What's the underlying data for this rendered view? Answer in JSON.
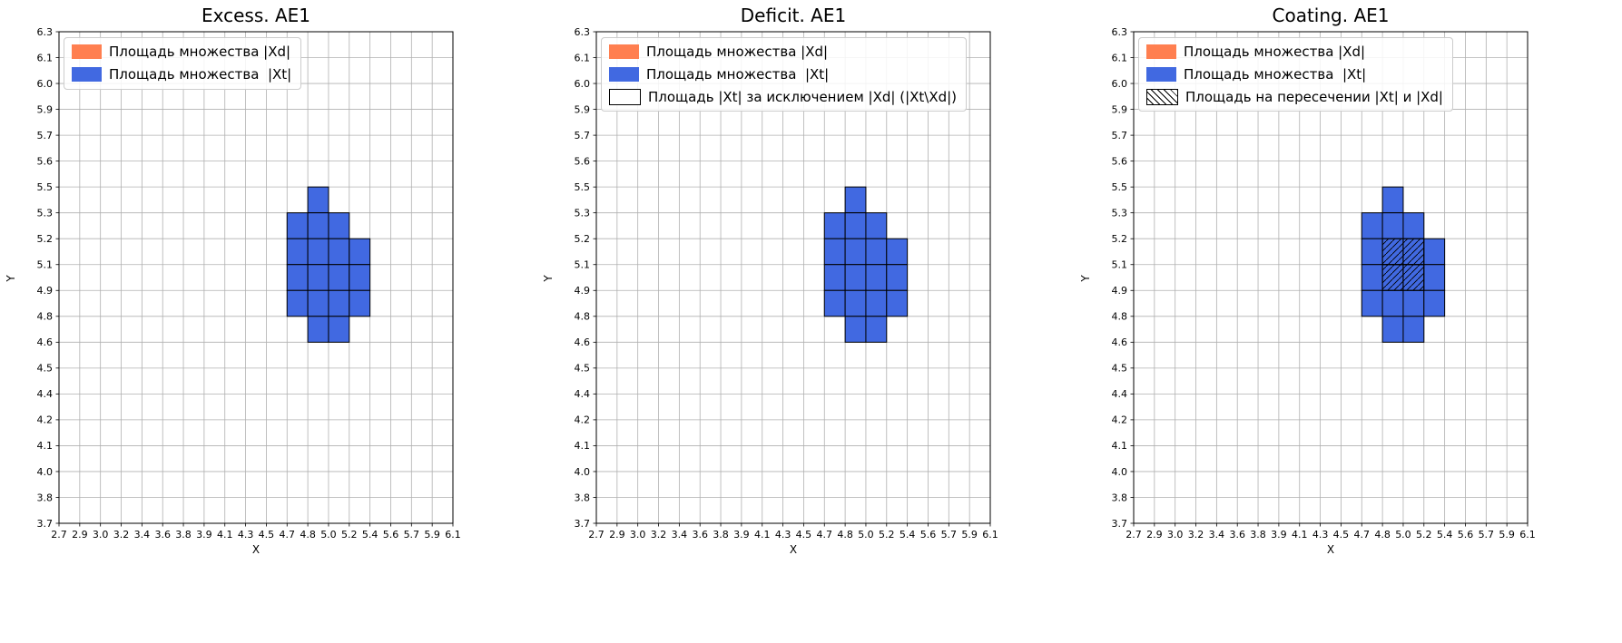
{
  "style": {
    "grid_color": "#b0b0b0",
    "spine_color": "#000000",
    "cell_edge_color": "#000000",
    "hatch_color": "#000000",
    "xd_color": "#ff7f50",
    "xt_color": "#4169e1"
  },
  "chart_data": [
    {
      "type": "area",
      "title": "Excess. AE1",
      "xlabel": "X",
      "ylabel": "Y",
      "grid": true,
      "legend_position": "upper left",
      "x_ticks": [
        "2.7",
        "2.9",
        "3.0",
        "3.2",
        "3.4",
        "3.6",
        "3.8",
        "3.9",
        "4.1",
        "4.3",
        "4.5",
        "4.7",
        "4.8",
        "5.0",
        "5.2",
        "5.4",
        "5.6",
        "5.7",
        "5.9",
        "6.1"
      ],
      "y_ticks": [
        "3.7",
        "3.8",
        "4.0",
        "4.1",
        "4.2",
        "4.4",
        "4.5",
        "4.6",
        "4.8",
        "4.9",
        "5.1",
        "5.2",
        "5.3",
        "5.5",
        "5.6",
        "5.7",
        "5.9",
        "6.0",
        "6.1",
        "6.3"
      ],
      "legend": [
        {
          "label": "Площадь множества |Xd|",
          "style": "solid",
          "color": "#ff7f50"
        },
        {
          "label": "Площадь множества  |Xt|",
          "style": "solid",
          "color": "#4169e1"
        }
      ],
      "xt_region": {
        "fill": "#4169e1",
        "x_range": [
          4.7,
          5.4
        ],
        "y_range": [
          4.6,
          5.5
        ],
        "cells": [
          [
            12,
            12
          ],
          [
            11,
            11
          ],
          [
            12,
            11
          ],
          [
            13,
            11
          ],
          [
            11,
            10
          ],
          [
            12,
            10
          ],
          [
            13,
            10
          ],
          [
            14,
            10
          ],
          [
            11,
            9
          ],
          [
            12,
            9
          ],
          [
            13,
            9
          ],
          [
            14,
            9
          ],
          [
            11,
            8
          ],
          [
            12,
            8
          ],
          [
            13,
            8
          ],
          [
            14,
            8
          ],
          [
            12,
            7
          ],
          [
            13,
            7
          ]
        ]
      },
      "hatched_cells": []
    },
    {
      "type": "area",
      "title": "Deficit. AE1",
      "xlabel": "X",
      "ylabel": "Y",
      "grid": true,
      "legend_position": "upper left",
      "x_ticks": [
        "2.7",
        "2.9",
        "3.0",
        "3.2",
        "3.4",
        "3.6",
        "3.8",
        "3.9",
        "4.1",
        "4.3",
        "4.5",
        "4.7",
        "4.8",
        "5.0",
        "5.2",
        "5.4",
        "5.6",
        "5.7",
        "5.9",
        "6.1"
      ],
      "y_ticks": [
        "3.7",
        "3.8",
        "4.0",
        "4.1",
        "4.2",
        "4.4",
        "4.5",
        "4.6",
        "4.8",
        "4.9",
        "5.1",
        "5.2",
        "5.3",
        "5.5",
        "5.6",
        "5.7",
        "5.9",
        "6.0",
        "6.1",
        "6.3"
      ],
      "legend": [
        {
          "label": "Площадь множества |Xd|",
          "style": "solid",
          "color": "#ff7f50"
        },
        {
          "label": "Площадь множества  |Xt|",
          "style": "solid",
          "color": "#4169e1"
        },
        {
          "label": "Площадь |Xt| за исключением |Xd| (|Xt\\Xd|)",
          "style": "empty",
          "color": "#ffffff"
        }
      ],
      "xt_region": {
        "fill": "#4169e1",
        "x_range": [
          4.7,
          5.4
        ],
        "y_range": [
          4.6,
          5.5
        ],
        "cells": [
          [
            12,
            12
          ],
          [
            11,
            11
          ],
          [
            12,
            11
          ],
          [
            13,
            11
          ],
          [
            11,
            10
          ],
          [
            12,
            10
          ],
          [
            13,
            10
          ],
          [
            14,
            10
          ],
          [
            11,
            9
          ],
          [
            12,
            9
          ],
          [
            13,
            9
          ],
          [
            14,
            9
          ],
          [
            11,
            8
          ],
          [
            12,
            8
          ],
          [
            13,
            8
          ],
          [
            14,
            8
          ],
          [
            12,
            7
          ],
          [
            13,
            7
          ]
        ]
      },
      "hatched_cells": []
    },
    {
      "type": "area",
      "title": "Coating. AE1",
      "xlabel": "X",
      "ylabel": "Y",
      "grid": true,
      "legend_position": "upper left",
      "x_ticks": [
        "2.7",
        "2.9",
        "3.0",
        "3.2",
        "3.4",
        "3.6",
        "3.8",
        "3.9",
        "4.1",
        "4.3",
        "4.5",
        "4.7",
        "4.8",
        "5.0",
        "5.2",
        "5.4",
        "5.6",
        "5.7",
        "5.9",
        "6.1"
      ],
      "y_ticks": [
        "3.7",
        "3.8",
        "4.0",
        "4.1",
        "4.2",
        "4.4",
        "4.5",
        "4.6",
        "4.8",
        "4.9",
        "5.1",
        "5.2",
        "5.3",
        "5.5",
        "5.6",
        "5.7",
        "5.9",
        "6.0",
        "6.1",
        "6.3"
      ],
      "legend": [
        {
          "label": "Площадь множества |Xd|",
          "style": "solid",
          "color": "#ff7f50"
        },
        {
          "label": "Площадь множества  |Xt|",
          "style": "solid",
          "color": "#4169e1"
        },
        {
          "label": "Площадь на пересечении |Xt| и |Xd|",
          "style": "hatch",
          "color": "#ffffff"
        }
      ],
      "xt_region": {
        "fill": "#4169e1",
        "x_range": [
          4.7,
          5.4
        ],
        "y_range": [
          4.6,
          5.5
        ],
        "cells": [
          [
            12,
            12
          ],
          [
            11,
            11
          ],
          [
            12,
            11
          ],
          [
            13,
            11
          ],
          [
            11,
            10
          ],
          [
            12,
            10
          ],
          [
            13,
            10
          ],
          [
            14,
            10
          ],
          [
            11,
            9
          ],
          [
            12,
            9
          ],
          [
            13,
            9
          ],
          [
            14,
            9
          ],
          [
            11,
            8
          ],
          [
            12,
            8
          ],
          [
            13,
            8
          ],
          [
            14,
            8
          ],
          [
            12,
            7
          ],
          [
            13,
            7
          ]
        ]
      },
      "hatched_cells": [
        [
          12,
          10
        ],
        [
          13,
          10
        ],
        [
          12,
          9
        ],
        [
          13,
          9
        ]
      ]
    }
  ]
}
